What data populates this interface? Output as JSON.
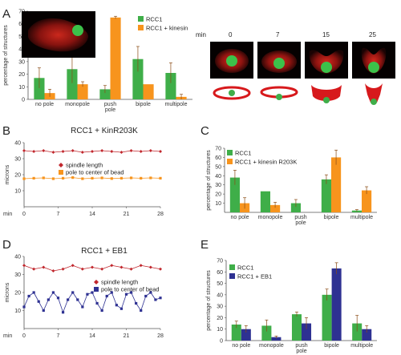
{
  "panel_letters": [
    "A",
    "B",
    "C",
    "D",
    "E"
  ],
  "timelapse": {
    "unit_label": "min",
    "times": [
      "0",
      "7",
      "15",
      "25"
    ]
  },
  "colors": {
    "green": "#3fae49",
    "orange": "#f7941d",
    "blue": "#2e3192",
    "red_series": "#c1272d",
    "spindle_red": "#d7191c"
  },
  "chart_data": [
    {
      "id": "A",
      "type": "bar",
      "ylabel": "percentage of structures",
      "ylim": [
        0,
        70
      ],
      "yticks": [
        0,
        10,
        20,
        30,
        40,
        50,
        60,
        70
      ],
      "categories": [
        "no pole",
        "monopole",
        "push pole",
        "bipole",
        "multipole"
      ],
      "series": [
        {
          "name": "RCC1",
          "color": "#3fae49",
          "values": [
            17,
            24,
            8,
            32,
            21
          ],
          "errors": [
            8,
            11,
            3,
            10,
            8
          ]
        },
        {
          "name": "RCC1 + kinesin",
          "color": "#f7941d",
          "values": [
            5,
            12,
            65,
            12,
            2
          ],
          "errors": [
            3,
            2,
            1,
            0,
            2
          ]
        }
      ]
    },
    {
      "id": "B",
      "type": "line",
      "title": "RCC1 + KinR203K",
      "xlabel": "min",
      "ylabel": "microns",
      "xlim": [
        0,
        28
      ],
      "ylim": [
        0,
        40
      ],
      "xticks": [
        0,
        7,
        14,
        21,
        28
      ],
      "yticks": [
        10,
        20,
        30,
        40
      ],
      "series": [
        {
          "name": "spindle length",
          "color": "#c1272d",
          "marker": "diamond",
          "x": [
            0,
            2,
            4,
            6,
            8,
            10,
            12,
            14,
            16,
            18,
            20,
            22,
            24,
            26,
            28
          ],
          "y": [
            35,
            34.5,
            35,
            34,
            34.5,
            35,
            34,
            34.5,
            35,
            34.5,
            34,
            35,
            34.5,
            35,
            34.5
          ]
        },
        {
          "name": "pole to center of bead",
          "color": "#f7941d",
          "marker": "square",
          "x": [
            0,
            2,
            4,
            6,
            8,
            10,
            12,
            14,
            16,
            18,
            20,
            22,
            24,
            26,
            28
          ],
          "y": [
            17.5,
            17.8,
            18,
            17.5,
            17.8,
            18.2,
            17.5,
            17.8,
            18,
            17.6,
            17.8,
            18,
            17.8,
            18,
            17.8
          ]
        }
      ]
    },
    {
      "id": "C",
      "type": "bar",
      "ylabel": "percentage of structures",
      "ylim": [
        0,
        70
      ],
      "yticks": [
        10,
        20,
        30,
        40,
        50,
        60,
        70
      ],
      "categories": [
        "no pole",
        "monopole",
        "push pole",
        "bipole",
        "multipole"
      ],
      "series": [
        {
          "name": "RCC1",
          "color": "#3fae49",
          "values": [
            38,
            23,
            10,
            36,
            2
          ],
          "errors": [
            8,
            0,
            4,
            5,
            1
          ]
        },
        {
          "name": "RCC1 + kinesin R203K",
          "color": "#f7941d",
          "values": [
            10,
            8,
            0,
            60,
            24
          ],
          "errors": [
            6,
            3,
            0,
            8,
            4
          ]
        }
      ]
    },
    {
      "id": "D",
      "type": "line",
      "title": "RCC1 + EB1",
      "xlabel": "min",
      "ylabel": "microns",
      "xlim": [
        0,
        28
      ],
      "ylim": [
        0,
        40
      ],
      "xticks": [
        0,
        7,
        14,
        21,
        28
      ],
      "yticks": [
        10,
        20,
        30,
        40
      ],
      "series": [
        {
          "name": "spindle length",
          "color": "#c1272d",
          "marker": "diamond",
          "x": [
            0,
            2,
            4,
            6,
            8,
            10,
            12,
            14,
            16,
            18,
            20,
            22,
            24,
            26,
            28
          ],
          "y": [
            35,
            33,
            34,
            32,
            33,
            35,
            33,
            34,
            33,
            35,
            34,
            33,
            35,
            34,
            33
          ]
        },
        {
          "name": "pole to center of bead",
          "color": "#2e3192",
          "marker": "square",
          "x": [
            0,
            1,
            2,
            3,
            4,
            5,
            6,
            7,
            8,
            9,
            10,
            11,
            12,
            13,
            14,
            15,
            16,
            17,
            18,
            19,
            20,
            21,
            22,
            23,
            24,
            25,
            26,
            27,
            28
          ],
          "y": [
            12,
            18,
            20,
            15,
            10,
            16,
            20,
            17,
            9,
            16,
            20,
            16,
            12,
            19,
            20,
            14,
            10,
            18,
            20,
            13,
            11,
            19,
            20,
            14,
            10,
            18,
            20,
            16,
            17
          ]
        }
      ]
    },
    {
      "id": "E",
      "type": "bar",
      "ylabel": "percentage of structures",
      "ylim": [
        0,
        70
      ],
      "yticks": [
        0,
        10,
        20,
        30,
        40,
        50,
        60,
        70
      ],
      "categories": [
        "no pole",
        "monopole",
        "push pole",
        "bipole",
        "multipole"
      ],
      "series": [
        {
          "name": "RCC1",
          "color": "#3fae49",
          "values": [
            14,
            13,
            23,
            40,
            15
          ],
          "errors": [
            3,
            5,
            2,
            5,
            7
          ]
        },
        {
          "name": "RCC1 + EB1",
          "color": "#2e3192",
          "values": [
            10,
            3,
            15,
            63,
            10
          ],
          "errors": [
            3,
            1,
            5,
            5,
            3
          ]
        }
      ]
    }
  ]
}
